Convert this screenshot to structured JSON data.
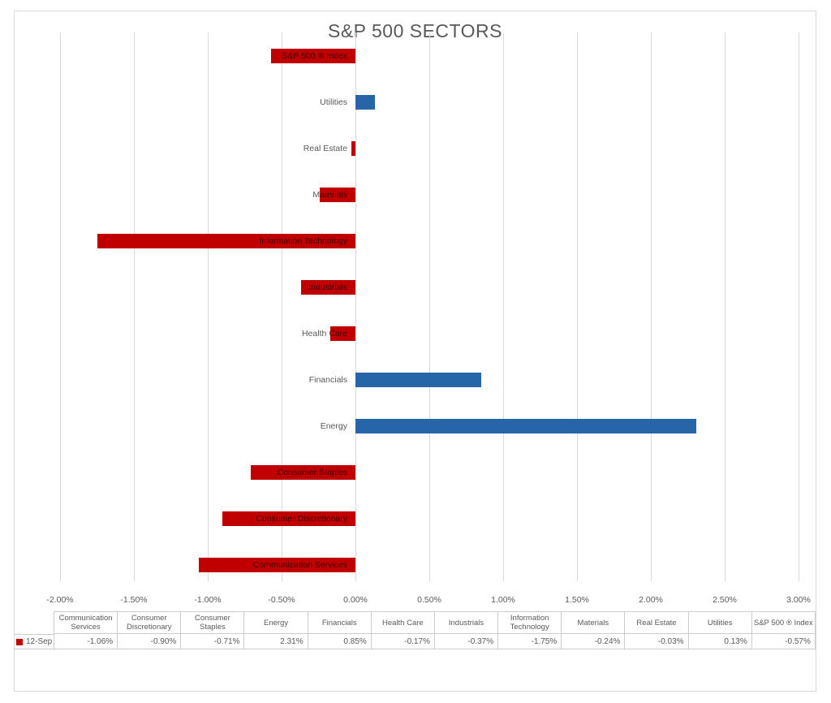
{
  "chart_data": {
    "type": "bar",
    "orientation": "horizontal",
    "title": "S&P 500 SECTORS",
    "series_name": "12-Sep",
    "categories_top_to_bottom": [
      "S&P 500 ® Index",
      "Utilities",
      "Real Estate",
      "Materials",
      "Information Technology",
      "Industrials",
      "Health Care",
      "Financials",
      "Energy",
      "Consumer Staples",
      "Consumer Discretionary",
      "Communication Services"
    ],
    "values_pct_top_to_bottom": [
      -0.57,
      0.13,
      -0.03,
      -0.24,
      -1.75,
      -0.37,
      -0.17,
      0.85,
      2.31,
      -0.71,
      -0.9,
      -1.06
    ],
    "xlim": [
      -2.0,
      3.0
    ],
    "xtick_labels": [
      "-2.00%",
      "-1.50%",
      "-1.00%",
      "-0.50%",
      "0.00%",
      "0.50%",
      "1.00%",
      "1.50%",
      "2.00%",
      "2.50%",
      "3.00%"
    ],
    "grid": true,
    "legend_position": "bottom-table",
    "colors": {
      "positive_bar": "#2565a8",
      "negative_bar": "#c00000",
      "gridline": "#d9d9d9",
      "text": "#595959"
    }
  },
  "table": {
    "legend_label": "12-Sep",
    "legend_marker_color": "#c00000",
    "columns": [
      "Communication Services",
      "Consumer Discretionary",
      "Consumer Staples",
      "Energy",
      "Financials",
      "Health Care",
      "Industrials",
      "Information Technology",
      "Materials",
      "Real Estate",
      "Utilities",
      "S&P 500 ® Index"
    ],
    "values": [
      "-1.06%",
      "-0.90%",
      "-0.71%",
      "2.31%",
      "0.85%",
      "-0.17%",
      "-0.37%",
      "-1.75%",
      "-0.24%",
      "-0.03%",
      "0.13%",
      "-0.57%"
    ]
  }
}
